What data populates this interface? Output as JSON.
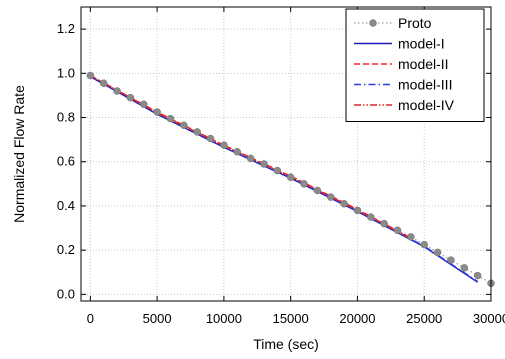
{
  "chart_data": {
    "type": "line",
    "title": "",
    "xlabel": "Time (sec)",
    "ylabel": "Normalized Flow Rate",
    "xlim": [
      -700,
      30000
    ],
    "ylim": [
      -0.03,
      1.3
    ],
    "xticks": [
      0,
      5000,
      10000,
      15000,
      20000,
      25000,
      30000
    ],
    "xtick_labels": [
      "0",
      "5000",
      "10000",
      "15000",
      "20000",
      "25000",
      "30000"
    ],
    "yticks": [
      0.0,
      0.2,
      0.4,
      0.6,
      0.8,
      1.0,
      1.2
    ],
    "ytick_labels": [
      "0.0",
      "0.2",
      "0.4",
      "0.6",
      "0.8",
      "1.0",
      "1.2"
    ],
    "grid": true,
    "legend_position": "top-right",
    "series": [
      {
        "name": "Proto",
        "style": "dotted-with-markers",
        "color": "#808080",
        "x": [
          0,
          1000,
          2000,
          3000,
          4000,
          5000,
          6000,
          7000,
          8000,
          9000,
          10000,
          11000,
          12000,
          13000,
          14000,
          15000,
          16000,
          17000,
          18000,
          19000,
          20000,
          21000,
          22000,
          23000,
          24000,
          25000,
          26000,
          27000,
          28000,
          29000,
          30000
        ],
        "y": [
          0.99,
          0.955,
          0.92,
          0.89,
          0.86,
          0.825,
          0.795,
          0.765,
          0.735,
          0.705,
          0.675,
          0.645,
          0.615,
          0.59,
          0.56,
          0.53,
          0.5,
          0.47,
          0.44,
          0.41,
          0.38,
          0.35,
          0.32,
          0.29,
          0.26,
          0.225,
          0.19,
          0.155,
          0.12,
          0.085,
          0.05
        ]
      },
      {
        "name": "model-I",
        "style": "solid",
        "color": "#1b1bb8",
        "x": [
          0,
          5000,
          10000,
          15000,
          20000,
          25000,
          29000
        ],
        "y": [
          0.985,
          0.815,
          0.665,
          0.525,
          0.375,
          0.215,
          0.055
        ]
      },
      {
        "name": "model-II",
        "style": "dashed",
        "color": "#ff2020",
        "x": [
          0,
          5000,
          10000,
          15000,
          20000,
          24000
        ],
        "y": [
          0.99,
          0.825,
          0.675,
          0.535,
          0.385,
          0.255
        ]
      },
      {
        "name": "model-III",
        "style": "dashdot",
        "color": "#2a3ee6",
        "x": [
          0,
          5000,
          10000,
          15000,
          20000,
          25000,
          29000
        ],
        "y": [
          0.985,
          0.818,
          0.668,
          0.528,
          0.378,
          0.218,
          0.058
        ]
      },
      {
        "name": "model-IV",
        "style": "dashdotdot",
        "color": "#e02020",
        "x": [
          0,
          5000,
          10000,
          15000,
          20000,
          24000
        ],
        "y": [
          0.99,
          0.822,
          0.672,
          0.532,
          0.382,
          0.252
        ]
      }
    ]
  }
}
